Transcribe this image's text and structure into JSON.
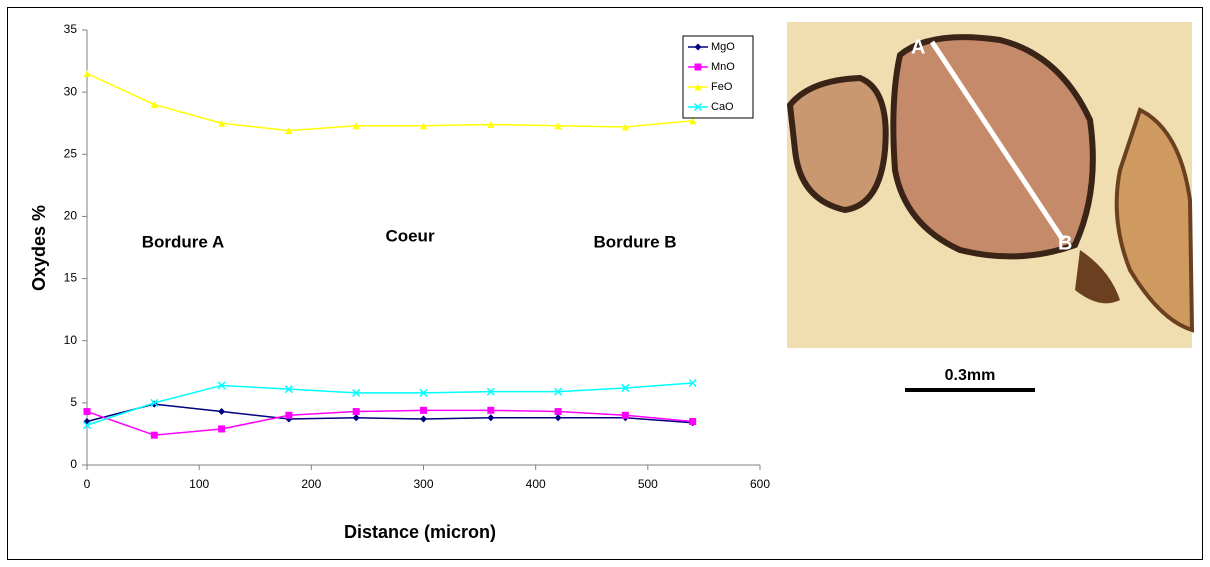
{
  "chart_data": {
    "type": "line",
    "x_label": "Distance (micron)",
    "y_label": "Oxydes %",
    "x": [
      0,
      60,
      120,
      180,
      240,
      300,
      360,
      420,
      480,
      540
    ],
    "series": [
      {
        "name": "MgO",
        "color": "#000080",
        "marker": "diamond",
        "values": [
          3.5,
          4.9,
          4.3,
          3.7,
          3.8,
          3.7,
          3.8,
          3.8,
          3.8,
          3.4
        ]
      },
      {
        "name": "MnO",
        "color": "#ff00ff",
        "marker": "square",
        "values": [
          4.3,
          2.4,
          2.9,
          4.0,
          4.3,
          4.4,
          4.4,
          4.3,
          4.0,
          3.5
        ]
      },
      {
        "name": "FeO",
        "color": "#ffff00",
        "marker": "triangle",
        "values": [
          31.5,
          29.0,
          27.5,
          26.9,
          27.3,
          27.3,
          27.4,
          27.3,
          27.2,
          27.7
        ]
      },
      {
        "name": "CaO",
        "color": "#00ffff",
        "marker": "cross",
        "values": [
          3.2,
          5.0,
          6.4,
          6.1,
          5.8,
          5.8,
          5.9,
          5.9,
          6.2,
          6.6
        ]
      }
    ],
    "annotations": [
      "Bordure A",
      "Coeur",
      "Bordure B"
    ],
    "xlim": [
      0,
      600
    ],
    "xticks": [
      0,
      100,
      200,
      300,
      400,
      500,
      600
    ],
    "ylim": [
      0,
      35
    ],
    "yticks": [
      0,
      5,
      10,
      15,
      20,
      25,
      30,
      35
    ],
    "grid": false,
    "legend": "top-right"
  },
  "figure": {
    "point_a": "A",
    "point_b": "B",
    "scale_bar": "0.3mm"
  }
}
